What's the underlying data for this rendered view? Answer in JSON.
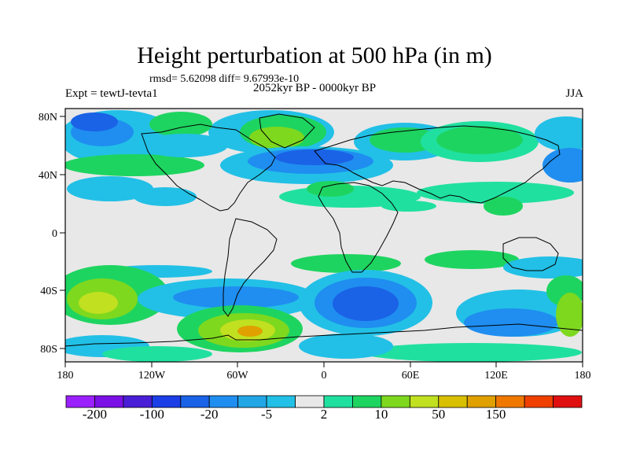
{
  "title": "Height perturbation at 500 hPa (in m)",
  "stats_line": "rmsd= 5.62098 diff= 9.67993e-10",
  "experiment": "Expt = tewtJ-tevta1",
  "period": "2052kyr BP - 0000kyr BP",
  "season": "JJA",
  "y_axis_labels": [
    "80N",
    "40N",
    "0",
    "40S",
    "80S"
  ],
  "x_axis_labels": [
    "180",
    "120W",
    "60W",
    "0",
    "60E",
    "120E",
    "180"
  ],
  "colorbar": {
    "colors": [
      "#9b20ff",
      "#7a10e6",
      "#4a1ed6",
      "#1c3ee6",
      "#1a62e6",
      "#1f8ef0",
      "#22a6e6",
      "#22c0e6",
      "#e8e8e8",
      "#20e0a0",
      "#1ed460",
      "#7ed81e",
      "#c0e020",
      "#d8c000",
      "#e0a000",
      "#f07800",
      "#f04000",
      "#e01010"
    ],
    "labels": [
      "-200",
      "-100",
      "-20",
      "-5",
      "2",
      "10",
      "50",
      "150"
    ]
  },
  "map_colors": {
    "neutral": "#e8e8e8",
    "coast": "#000000"
  }
}
